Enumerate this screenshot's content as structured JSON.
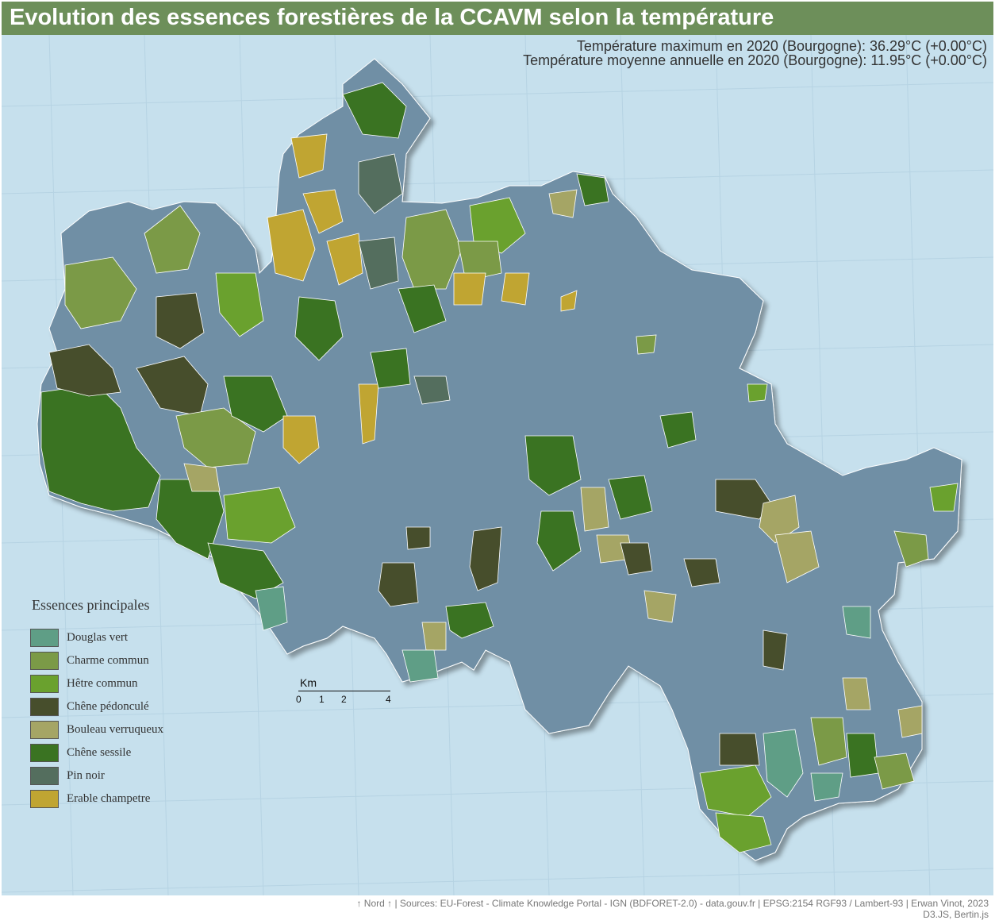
{
  "title": "Evolution des essences forestières de la CCAVM selon la température",
  "temperature": {
    "max_line": "Température maximum en 2020 (Bourgogne): 36.29°C (+0.00°C)",
    "mean_line": "Température moyenne annuelle en 2020 (Bourgogne): 11.95°C (+0.00°C)"
  },
  "legend": {
    "title": "Essences principales",
    "items": [
      {
        "label": "Douglas vert",
        "color": "#5f9e86"
      },
      {
        "label": "Charme commun",
        "color": "#7b9a47"
      },
      {
        "label": "Hêtre commun",
        "color": "#6aa12e"
      },
      {
        "label": "Chêne pédonculé",
        "color": "#474e2c"
      },
      {
        "label": "Bouleau verruqueux",
        "color": "#a5a565"
      },
      {
        "label": "Chêne sessile",
        "color": "#3a7322"
      },
      {
        "label": "Pin noir",
        "color": "#546e5e"
      },
      {
        "label": "Erable champetre",
        "color": "#c0a532"
      }
    ]
  },
  "map": {
    "water_color": "#c6e0ed",
    "territory_color": "#6f8fa5",
    "grid_color": "#b6d3e3"
  },
  "scale": {
    "title": "Km",
    "ticks": [
      "0",
      "1",
      "2",
      "4"
    ]
  },
  "footer": {
    "line1": "↑ Nord ↑ | Sources: EU-Forest - Climate Knowledge Portal - IGN (BDFORET-2.0) - data.gouv.fr | EPSG:2154 RGF93 / Lambert-93 | Erwan Vinot, 2023",
    "line2": "D3.JS, Bertin.js"
  }
}
